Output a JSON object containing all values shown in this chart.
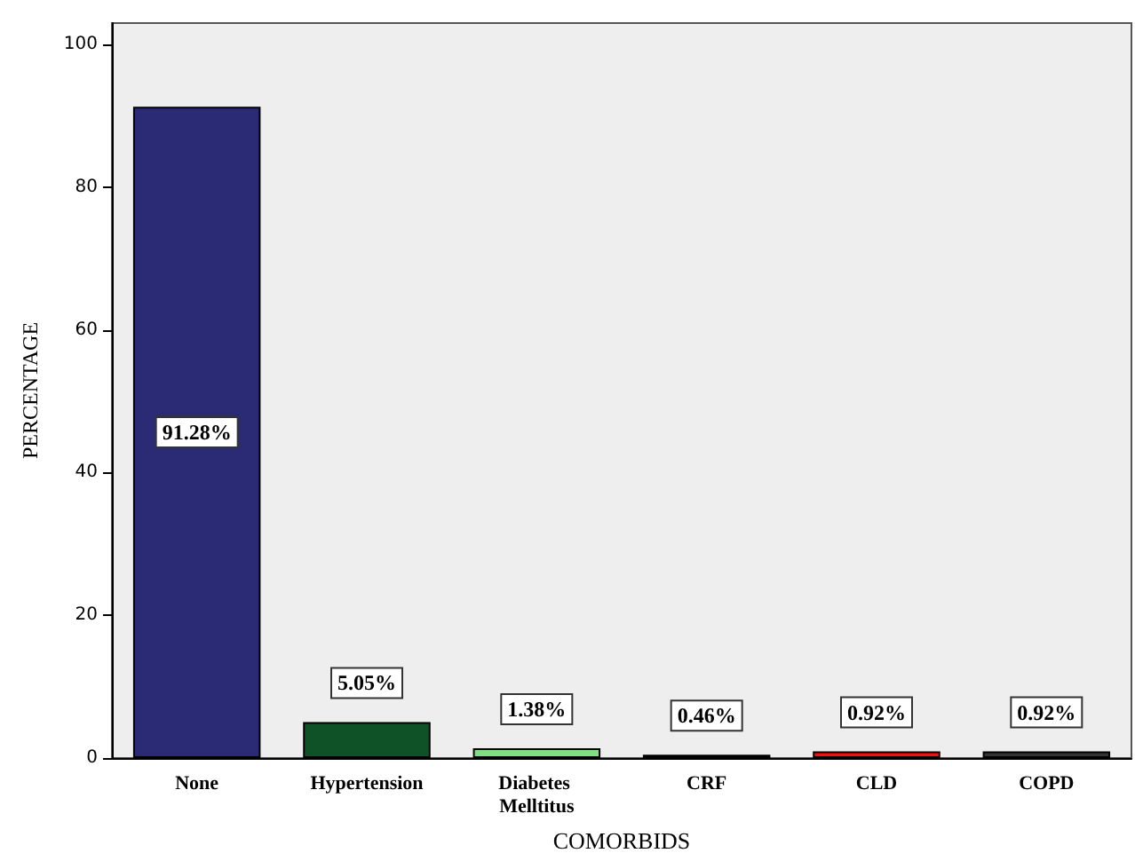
{
  "chart_data": {
    "type": "bar",
    "xlabel": "COMORBIDS",
    "ylabel": "PERCENTAGE",
    "categories": [
      "None",
      "Hypertension",
      "Diabetes Melltitus",
      "CRF",
      "CLD",
      "COPD"
    ],
    "values": [
      91.28,
      5.05,
      1.38,
      0.46,
      0.92,
      0.92
    ],
    "colors": [
      "#2b2a75",
      "#0f5228",
      "#7fdf85",
      "#8b2a2a",
      "#ee1111",
      "#333333"
    ],
    "value_labels": [
      "91.28%",
      "5.05%",
      "1.38%",
      "0.46%",
      "0.92%",
      "0.92%"
    ],
    "ylim": [
      0,
      103
    ],
    "yticks": [
      0,
      20,
      40,
      60,
      80,
      100
    ]
  }
}
